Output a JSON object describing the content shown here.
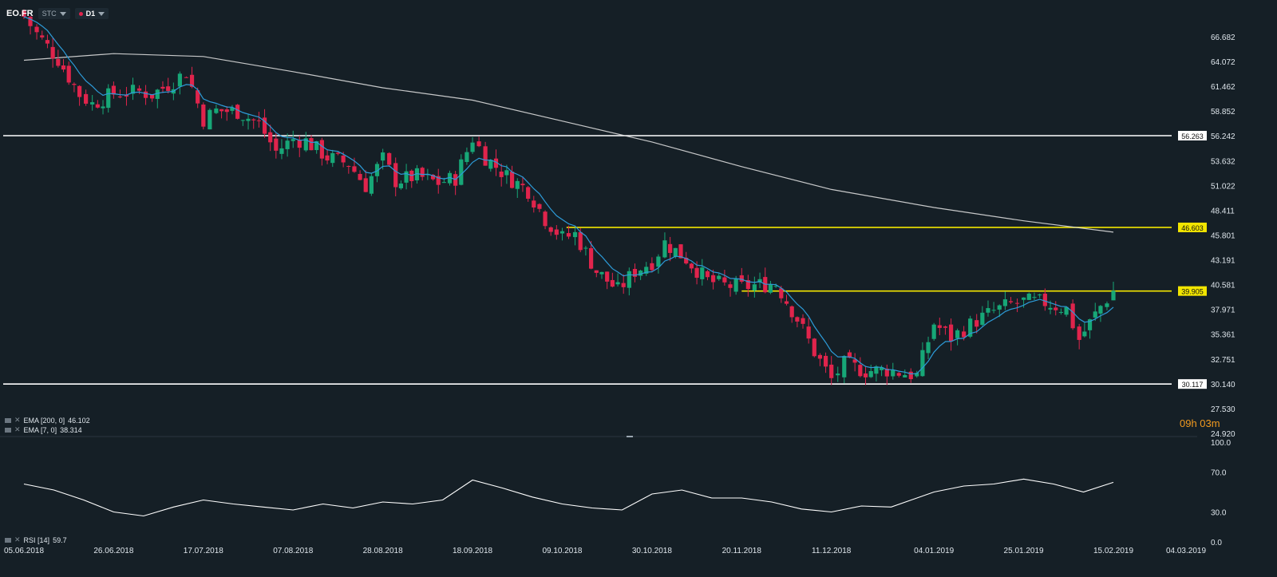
{
  "header": {
    "symbol": "EO.FR",
    "style_label": "STC",
    "timeframe_label": "D1"
  },
  "countdown": "09h 03m",
  "indicators": [
    {
      "label": "EMA [200, 0]",
      "value": "46.102"
    },
    {
      "label": "EMA [7, 0]",
      "value": "38.314"
    }
  ],
  "rsi_legend": {
    "label": "RSI [14]",
    "value": "59.7"
  },
  "colors": {
    "background": "#151f26",
    "up": "#17a777",
    "down": "#e0244c",
    "ema200": "#e6e6e6",
    "ema7": "#2d9bd8",
    "level_white": "#ffffff",
    "level_yellow": "#f2e500",
    "countdown": "#f29a1f"
  },
  "chart_data": [
    {
      "type": "candlestick",
      "series": [
        {
          "name": "EMA [200, 0]"
        },
        {
          "name": "EMA [7, 0]"
        }
      ],
      "y_ticks": [
        "66.682",
        "64.072",
        "61.462",
        "58.852",
        "56.242",
        "53.632",
        "51.022",
        "48.411",
        "45.801",
        "43.191",
        "40.581",
        "37.971",
        "35.361",
        "32.751",
        "30.140",
        "27.530",
        "24.920"
      ],
      "ylim": [
        24.92,
        66.682
      ],
      "x_ticks": [
        "05.06.2018",
        "26.06.2018",
        "17.07.2018",
        "07.08.2018",
        "28.08.2018",
        "18.09.2018",
        "09.10.2018",
        "30.10.2018",
        "20.11.2018",
        "11.12.2018",
        "04.01.2019",
        "25.01.2019",
        "15.02.2019",
        "04.03.2019"
      ],
      "grid": false,
      "horizontal_levels": [
        {
          "value": 56.263,
          "label": "56.263",
          "color": "white",
          "start": "full"
        },
        {
          "value": 46.603,
          "label": "46.603",
          "color": "yellow",
          "start": "10.10.2018"
        },
        {
          "value": 39.905,
          "label": "39.905",
          "color": "yellow",
          "start": "20.11.2018"
        },
        {
          "value": 30.117,
          "label": "30.117",
          "color": "white",
          "start": "full"
        }
      ],
      "ema7_last": 38.314,
      "ema200_last": 46.102,
      "close_path": [
        {
          "date": "05.06.2018",
          "close": 68.8
        },
        {
          "date": "08.06.2018",
          "close": 67.0
        },
        {
          "date": "13.06.2018",
          "close": 64.3
        },
        {
          "date": "18.06.2018",
          "close": 60.6
        },
        {
          "date": "21.06.2018",
          "close": 59.6
        },
        {
          "date": "26.06.2018",
          "close": 60.7
        },
        {
          "date": "02.07.2018",
          "close": 60.9
        },
        {
          "date": "05.07.2018",
          "close": 60.6
        },
        {
          "date": "10.07.2018",
          "close": 62.0
        },
        {
          "date": "13.07.2018",
          "close": 63.0
        },
        {
          "date": "17.07.2018",
          "close": 58.0
        },
        {
          "date": "20.07.2018",
          "close": 58.9
        },
        {
          "date": "25.07.2018",
          "close": 58.8
        },
        {
          "date": "30.07.2018",
          "close": 57.5
        },
        {
          "date": "03.08.2018",
          "close": 54.6
        },
        {
          "date": "07.08.2018",
          "close": 55.9
        },
        {
          "date": "10.08.2018",
          "close": 55.7
        },
        {
          "date": "15.08.2018",
          "close": 54.0
        },
        {
          "date": "20.08.2018",
          "close": 53.3
        },
        {
          "date": "24.08.2018",
          "close": 51.0
        },
        {
          "date": "28.08.2018",
          "close": 53.8
        },
        {
          "date": "31.08.2018",
          "close": 51.5
        },
        {
          "date": "05.09.2018",
          "close": 52.0
        },
        {
          "date": "10.09.2018",
          "close": 51.3
        },
        {
          "date": "14.09.2018",
          "close": 51.8
        },
        {
          "date": "18.09.2018",
          "close": 56.0
        },
        {
          "date": "21.09.2018",
          "close": 54.0
        },
        {
          "date": "26.09.2018",
          "close": 52.0
        },
        {
          "date": "01.10.2018",
          "close": 50.5
        },
        {
          "date": "05.10.2018",
          "close": 47.5
        },
        {
          "date": "09.10.2018",
          "close": 45.5
        },
        {
          "date": "12.10.2018",
          "close": 45.9
        },
        {
          "date": "17.10.2018",
          "close": 42.0
        },
        {
          "date": "22.10.2018",
          "close": 40.0
        },
        {
          "date": "26.10.2018",
          "close": 42.0
        },
        {
          "date": "30.10.2018",
          "close": 43.0
        },
        {
          "date": "02.11.2018",
          "close": 45.0
        },
        {
          "date": "07.11.2018",
          "close": 43.3
        },
        {
          "date": "12.11.2018",
          "close": 41.0
        },
        {
          "date": "16.11.2018",
          "close": 40.5
        },
        {
          "date": "20.11.2018",
          "close": 40.3
        },
        {
          "date": "23.11.2018",
          "close": 40.5
        },
        {
          "date": "28.11.2018",
          "close": 40.7
        },
        {
          "date": "03.12.2018",
          "close": 37.0
        },
        {
          "date": "07.12.2018",
          "close": 33.5
        },
        {
          "date": "11.12.2018",
          "close": 30.6
        },
        {
          "date": "14.12.2018",
          "close": 32.2
        },
        {
          "date": "19.12.2018",
          "close": 31.5
        },
        {
          "date": "24.12.2018",
          "close": 31.6
        },
        {
          "date": "31.12.2018",
          "close": 31.0
        },
        {
          "date": "04.01.2019",
          "close": 36.5
        },
        {
          "date": "08.01.2019",
          "close": 35.0
        },
        {
          "date": "14.01.2019",
          "close": 36.8
        },
        {
          "date": "18.01.2019",
          "close": 37.8
        },
        {
          "date": "22.01.2019",
          "close": 38.5
        },
        {
          "date": "25.01.2019",
          "close": 38.8
        },
        {
          "date": "30.01.2019",
          "close": 38.7
        },
        {
          "date": "04.02.2019",
          "close": 38.0
        },
        {
          "date": "07.02.2019",
          "close": 34.8
        },
        {
          "date": "12.02.2019",
          "close": 38.3
        },
        {
          "date": "15.02.2019",
          "close": 39.9
        }
      ]
    },
    {
      "type": "line",
      "series": [
        {
          "name": "RSI [14]"
        }
      ],
      "y_ticks": [
        "100.0",
        "70.0",
        "30.0",
        "0.0"
      ],
      "ylim": [
        0,
        100
      ],
      "x": [
        "05.06.2018",
        "12.06.2018",
        "19.06.2018",
        "26.06.2018",
        "03.07.2018",
        "10.07.2018",
        "17.07.2018",
        "24.07.2018",
        "31.07.2018",
        "07.08.2018",
        "14.08.2018",
        "21.08.2018",
        "28.08.2018",
        "04.09.2018",
        "11.09.2018",
        "18.09.2018",
        "25.09.2018",
        "02.10.2018",
        "09.10.2018",
        "16.10.2018",
        "23.10.2018",
        "30.10.2018",
        "06.11.2018",
        "13.11.2018",
        "20.11.2018",
        "27.11.2018",
        "04.12.2018",
        "11.12.2018",
        "18.12.2018",
        "25.12.2018",
        "04.01.2019",
        "11.01.2019",
        "18.01.2019",
        "25.01.2019",
        "01.02.2019",
        "08.02.2019",
        "15.02.2019"
      ],
      "values": [
        58,
        52,
        42,
        30,
        26,
        35,
        42,
        38,
        35,
        32,
        38,
        34,
        40,
        38,
        42,
        62,
        54,
        45,
        38,
        34,
        32,
        48,
        52,
        44,
        44,
        40,
        33,
        30,
        36,
        35,
        50,
        56,
        58,
        63,
        58,
        50,
        59.7
      ]
    }
  ]
}
